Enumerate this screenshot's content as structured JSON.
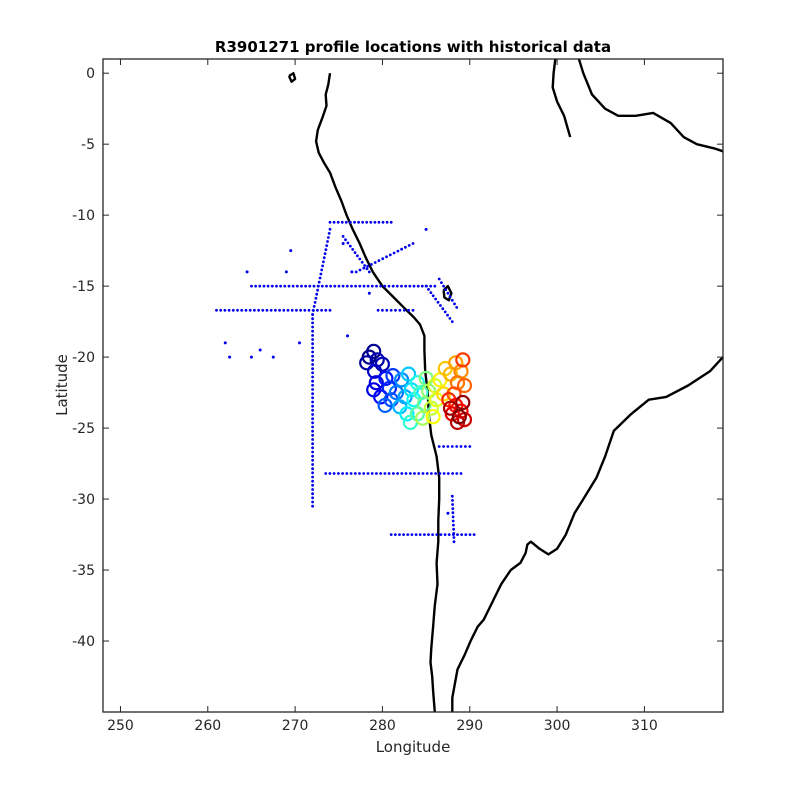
{
  "chart_data": {
    "type": "scatter",
    "title": "R3901271 profile locations with historical data",
    "xlabel": "Longitude",
    "ylabel": "Latitude",
    "xlim": [
      248,
      319
    ],
    "ylim": [
      -45,
      1
    ],
    "xticks": [
      250,
      260,
      270,
      280,
      290,
      300,
      310
    ],
    "yticks": [
      0,
      -5,
      -10,
      -15,
      -20,
      -25,
      -30,
      -35,
      -40
    ],
    "xtick_labels": [
      "250",
      "260",
      "270",
      "280",
      "290",
      "300",
      "310"
    ],
    "ytick_labels": [
      "0",
      "-5",
      "-10",
      "-15",
      "-20",
      "-25",
      "-30",
      "-35",
      "-40"
    ],
    "grid": false,
    "colors": {
      "historical": "#0000ee",
      "coastline": "#000000",
      "profile_colormap": [
        "#00008f",
        "#0000ff",
        "#0080ff",
        "#00ffff",
        "#80ff80",
        "#ffff00",
        "#ff8000",
        "#ff0000",
        "#800000"
      ]
    },
    "historical_tracks": [
      {
        "x": [
          261.0,
          274.0
        ],
        "y": [
          -16.7,
          -16.7
        ]
      },
      {
        "x": [
          265.0,
          286.0
        ],
        "y": [
          -15.0,
          -15.0
        ]
      },
      {
        "x": [
          274.0,
          281.0
        ],
        "y": [
          -10.5,
          -10.5
        ]
      },
      {
        "x": [
          272.0,
          272.0
        ],
        "y": [
          -30.5,
          -17.0
        ]
      },
      {
        "x": [
          272.0,
          274.0
        ],
        "y": [
          -17.0,
          -11.0
        ]
      },
      {
        "x": [
          279.5,
          283.5
        ],
        "y": [
          -16.7,
          -16.7
        ]
      },
      {
        "x": [
          273.5,
          289.0
        ],
        "y": [
          -28.2,
          -28.2
        ]
      },
      {
        "x": [
          286.5,
          290.0
        ],
        "y": [
          -26.3,
          -26.3
        ]
      },
      {
        "x": [
          281.0,
          290.5
        ],
        "y": [
          -32.5,
          -32.5
        ]
      },
      {
        "x": [
          277.0,
          283.5
        ],
        "y": [
          -14.0,
          -12.0
        ]
      },
      {
        "x": [
          275.5,
          278.5
        ],
        "y": [
          -11.5,
          -14.0
        ]
      },
      {
        "x": [
          285.0,
          288.0
        ],
        "y": [
          -15.0,
          -17.5
        ]
      },
      {
        "x": [
          286.5,
          288.5
        ],
        "y": [
          -14.5,
          -16.5
        ]
      },
      {
        "x": [
          288.0,
          288.2
        ],
        "y": [
          -29.8,
          -33.0
        ]
      }
    ],
    "historical_points": [
      {
        "x": 262.0,
        "y": -19.0
      },
      {
        "x": 262.5,
        "y": -20.0
      },
      {
        "x": 265.0,
        "y": -20.0
      },
      {
        "x": 266.0,
        "y": -19.5
      },
      {
        "x": 267.5,
        "y": -20.0
      },
      {
        "x": 264.5,
        "y": -14.0
      },
      {
        "x": 269.0,
        "y": -14.0
      },
      {
        "x": 269.5,
        "y": -12.5
      },
      {
        "x": 270.5,
        "y": -19.0
      },
      {
        "x": 276.5,
        "y": -14.0
      },
      {
        "x": 275.5,
        "y": -12.0
      },
      {
        "x": 278.5,
        "y": -15.5
      },
      {
        "x": 276.0,
        "y": -18.5
      },
      {
        "x": 287.5,
        "y": -31.0
      },
      {
        "x": 285.0,
        "y": -11.0
      }
    ],
    "float_profiles": [
      {
        "x": 278.5,
        "y": -20.0,
        "ci": 0.0
      },
      {
        "x": 279.0,
        "y": -19.6,
        "ci": 0.02
      },
      {
        "x": 278.2,
        "y": -20.4,
        "ci": 0.03
      },
      {
        "x": 279.4,
        "y": -20.2,
        "ci": 0.04
      },
      {
        "x": 280.0,
        "y": -20.5,
        "ci": 0.05
      },
      {
        "x": 279.1,
        "y": -21.0,
        "ci": 0.07
      },
      {
        "x": 279.3,
        "y": -21.8,
        "ci": 0.09
      },
      {
        "x": 279.0,
        "y": -22.3,
        "ci": 0.1
      },
      {
        "x": 279.8,
        "y": -22.8,
        "ci": 0.12
      },
      {
        "x": 280.4,
        "y": -21.5,
        "ci": 0.14
      },
      {
        "x": 280.8,
        "y": -22.2,
        "ci": 0.16
      },
      {
        "x": 281.2,
        "y": -21.3,
        "ci": 0.18
      },
      {
        "x": 281.0,
        "y": -23.0,
        "ci": 0.2
      },
      {
        "x": 280.3,
        "y": -23.4,
        "ci": 0.22
      },
      {
        "x": 281.6,
        "y": -22.5,
        "ci": 0.24
      },
      {
        "x": 282.2,
        "y": -21.6,
        "ci": 0.26
      },
      {
        "x": 282.6,
        "y": -22.8,
        "ci": 0.28
      },
      {
        "x": 282.0,
        "y": -23.5,
        "ci": 0.3
      },
      {
        "x": 283.0,
        "y": -21.2,
        "ci": 0.32
      },
      {
        "x": 283.3,
        "y": -22.3,
        "ci": 0.34
      },
      {
        "x": 282.8,
        "y": -24.0,
        "ci": 0.36
      },
      {
        "x": 283.6,
        "y": -23.0,
        "ci": 0.38
      },
      {
        "x": 284.0,
        "y": -21.8,
        "ci": 0.4
      },
      {
        "x": 283.2,
        "y": -24.6,
        "ci": 0.42
      },
      {
        "x": 284.4,
        "y": -22.5,
        "ci": 0.44
      },
      {
        "x": 284.0,
        "y": -24.0,
        "ci": 0.46
      },
      {
        "x": 284.8,
        "y": -23.3,
        "ci": 0.48
      },
      {
        "x": 285.0,
        "y": -21.5,
        "ci": 0.5
      },
      {
        "x": 285.3,
        "y": -22.4,
        "ci": 0.52
      },
      {
        "x": 284.6,
        "y": -24.3,
        "ci": 0.54
      },
      {
        "x": 285.6,
        "y": -23.6,
        "ci": 0.56
      },
      {
        "x": 286.0,
        "y": -22.0,
        "ci": 0.58
      },
      {
        "x": 286.2,
        "y": -23.0,
        "ci": 0.6
      },
      {
        "x": 285.8,
        "y": -24.2,
        "ci": 0.62
      },
      {
        "x": 286.6,
        "y": -21.6,
        "ci": 0.64
      },
      {
        "x": 287.0,
        "y": -22.6,
        "ci": 0.66
      },
      {
        "x": 287.2,
        "y": -20.8,
        "ci": 0.68
      },
      {
        "x": 287.8,
        "y": -21.2,
        "ci": 0.7
      },
      {
        "x": 288.4,
        "y": -20.4,
        "ci": 0.72
      },
      {
        "x": 289.0,
        "y": -21.0,
        "ci": 0.74
      },
      {
        "x": 288.6,
        "y": -21.8,
        "ci": 0.76
      },
      {
        "x": 289.4,
        "y": -22.0,
        "ci": 0.78
      },
      {
        "x": 288.2,
        "y": -22.6,
        "ci": 0.8
      },
      {
        "x": 289.2,
        "y": -20.2,
        "ci": 0.82
      },
      {
        "x": 287.6,
        "y": -23.0,
        "ci": 0.84
      },
      {
        "x": 288.4,
        "y": -23.4,
        "ci": 0.86
      },
      {
        "x": 289.0,
        "y": -23.8,
        "ci": 0.88
      },
      {
        "x": 288.0,
        "y": -24.0,
        "ci": 0.9
      },
      {
        "x": 289.4,
        "y": -24.4,
        "ci": 0.92
      },
      {
        "x": 288.6,
        "y": -24.6,
        "ci": 0.94
      },
      {
        "x": 287.8,
        "y": -23.6,
        "ci": 0.96
      },
      {
        "x": 289.2,
        "y": -23.2,
        "ci": 0.98
      },
      {
        "x": 288.8,
        "y": -24.2,
        "ci": 1.0
      }
    ],
    "coastlines": [
      [
        [
          274.0,
          0.0
        ],
        [
          273.8,
          -0.8
        ],
        [
          273.5,
          -1.5
        ],
        [
          273.6,
          -2.3
        ],
        [
          273.2,
          -3.0
        ],
        [
          272.6,
          -4.0
        ],
        [
          272.4,
          -4.8
        ],
        [
          272.7,
          -5.6
        ],
        [
          273.3,
          -6.3
        ],
        [
          274.0,
          -7.0
        ],
        [
          274.6,
          -8.0
        ],
        [
          275.3,
          -9.0
        ],
        [
          275.9,
          -10.0
        ],
        [
          276.6,
          -11.0
        ],
        [
          277.4,
          -12.0
        ],
        [
          278.1,
          -13.0
        ],
        [
          278.9,
          -14.0
        ],
        [
          280.0,
          -15.0
        ],
        [
          281.3,
          -15.8
        ],
        [
          282.6,
          -16.6
        ],
        [
          283.6,
          -17.2
        ],
        [
          284.3,
          -17.7
        ],
        [
          284.8,
          -18.5
        ],
        [
          284.8,
          -19.5
        ],
        [
          284.9,
          -21.0
        ],
        [
          285.2,
          -22.5
        ],
        [
          285.3,
          -24.0
        ],
        [
          285.6,
          -25.5
        ],
        [
          286.2,
          -27.0
        ],
        [
          286.5,
          -28.5
        ],
        [
          286.5,
          -30.0
        ],
        [
          286.4,
          -31.5
        ],
        [
          286.4,
          -33.0
        ],
        [
          286.2,
          -34.5
        ],
        [
          286.3,
          -36.0
        ],
        [
          286.0,
          -37.5
        ],
        [
          285.8,
          -39.0
        ],
        [
          285.6,
          -40.5
        ],
        [
          285.5,
          -41.5
        ],
        [
          285.7,
          -42.5
        ],
        [
          285.8,
          -43.5
        ],
        [
          286.0,
          -45.0
        ]
      ],
      [
        [
          288.0,
          -45.0
        ],
        [
          288.0,
          -44.0
        ],
        [
          288.6,
          -42.0
        ],
        [
          289.4,
          -41.0
        ],
        [
          290.1,
          -40.0
        ],
        [
          290.9,
          -39.0
        ],
        [
          291.6,
          -38.5
        ],
        [
          292.0,
          -38.0
        ],
        [
          292.8,
          -37.0
        ],
        [
          293.6,
          -36.0
        ],
        [
          294.7,
          -35.0
        ],
        [
          295.8,
          -34.5
        ],
        [
          296.4,
          -33.8
        ],
        [
          296.6,
          -33.2
        ],
        [
          297.0,
          -33.0
        ],
        [
          298.0,
          -33.5
        ],
        [
          299.0,
          -33.9
        ],
        [
          300.0,
          -33.5
        ],
        [
          301.0,
          -32.5
        ],
        [
          302.0,
          -31.0
        ],
        [
          303.0,
          -30.0
        ],
        [
          304.5,
          -28.5
        ],
        [
          305.5,
          -27.0
        ],
        [
          306.5,
          -25.2
        ],
        [
          308.5,
          -24.0
        ],
        [
          310.5,
          -23.0
        ],
        [
          312.5,
          -22.8
        ],
        [
          315.0,
          -22.0
        ],
        [
          317.5,
          -21.0
        ],
        [
          319.0,
          -20.0
        ]
      ],
      [
        [
          301.5,
          -4.5
        ],
        [
          300.8,
          -3.0
        ],
        [
          300.0,
          -2.0
        ],
        [
          299.5,
          -1.0
        ],
        [
          299.6,
          0.0
        ],
        [
          299.8,
          1.0
        ]
      ],
      [
        [
          302.5,
          1.0
        ],
        [
          303.0,
          0.0
        ],
        [
          304.0,
          -1.5
        ],
        [
          305.5,
          -2.5
        ],
        [
          307.0,
          -3.0
        ],
        [
          309.0,
          -3.0
        ],
        [
          311.0,
          -2.8
        ],
        [
          313.0,
          -3.5
        ],
        [
          314.5,
          -4.5
        ],
        [
          316.0,
          -5.0
        ],
        [
          318.0,
          -5.3
        ],
        [
          319.0,
          -5.5
        ]
      ],
      [
        [
          269.3,
          -0.2
        ],
        [
          269.6,
          -0.6
        ],
        [
          270.0,
          -0.4
        ],
        [
          269.8,
          0.0
        ],
        [
          269.3,
          -0.2
        ]
      ],
      [
        [
          287.0,
          -15.3
        ],
        [
          287.5,
          -15.0
        ],
        [
          287.9,
          -15.5
        ],
        [
          287.6,
          -16.0
        ],
        [
          287.1,
          -15.8
        ],
        [
          287.0,
          -15.3
        ]
      ]
    ]
  }
}
